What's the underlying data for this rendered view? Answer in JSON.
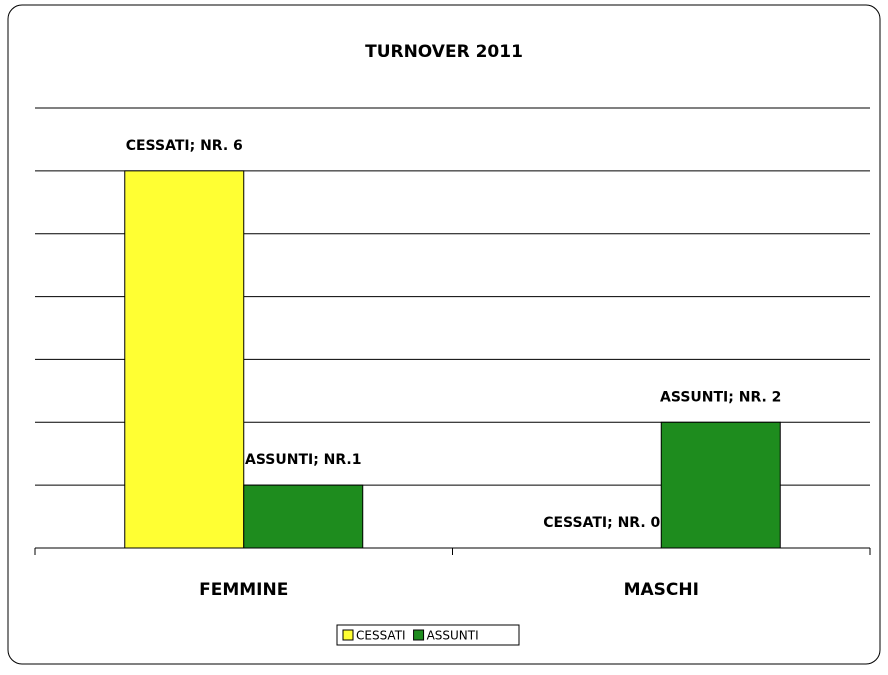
{
  "chart_data": {
    "type": "bar",
    "title": "TURNOVER 2011",
    "categories": [
      "FEMMINE",
      "MASCHI"
    ],
    "series": [
      {
        "name": "CESSATI",
        "color": "#ffff33",
        "values": [
          6,
          0
        ],
        "value_labels": [
          "CESSATI; NR. 6",
          "CESSATI; NR. 0"
        ]
      },
      {
        "name": "ASSUNTI",
        "color": "#1e8c1e",
        "values": [
          1,
          2
        ],
        "value_labels": [
          "ASSUNTI; NR.1",
          "ASSUNTI; NR. 2"
        ]
      }
    ],
    "ylim": [
      0,
      7
    ],
    "yticks": [
      0,
      1,
      2,
      3,
      4,
      5,
      6,
      7
    ],
    "grid": true,
    "legend": "bottom"
  }
}
